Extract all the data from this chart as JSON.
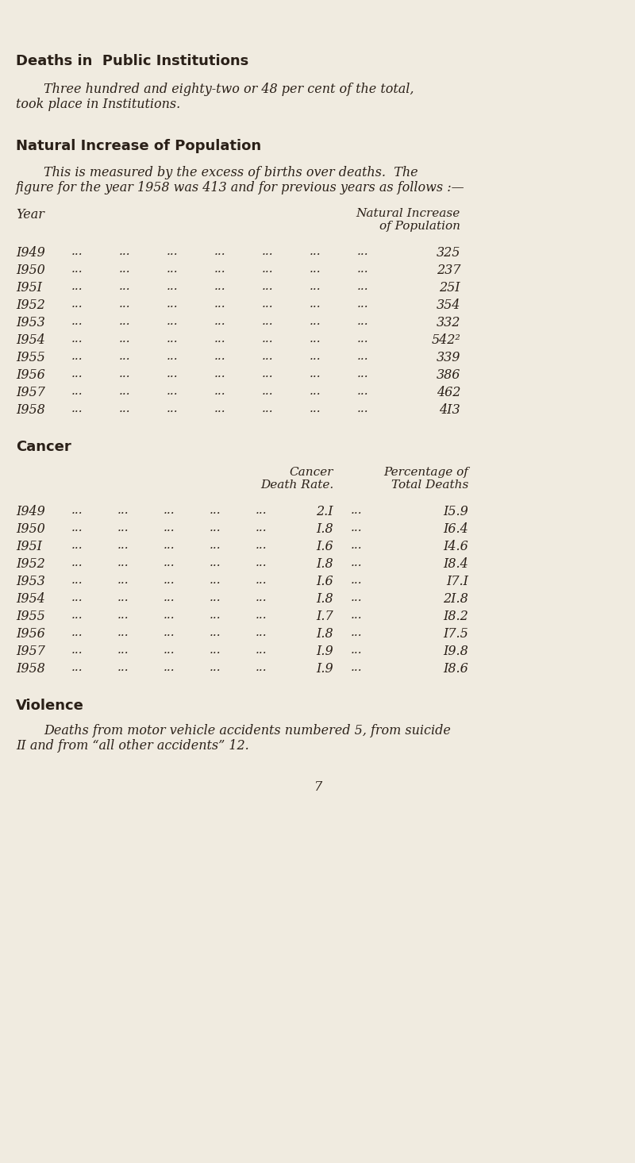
{
  "bg_color": "#f0ebe0",
  "text_color": "#2a2018",
  "section1_title": "Deaths in  Public Institutions",
  "section1_line1": "Three hundred and eighty-two or 48 per cent of the total,",
  "section1_line2": "took place in Institutions.",
  "section2_title": "Natural Increase of Population",
  "section2_line1": "This is measured by the excess of births over deaths.  The",
  "section2_line2": "figure for the year 1958 was 413 and for previous years as follows :—",
  "t1_col1_label": "Year",
  "t1_col2_label1": "Natural Increase",
  "t1_col2_label2": "of Population",
  "table1_rows": [
    [
      "I949",
      "325"
    ],
    [
      "I950",
      "237"
    ],
    [
      "I95I",
      "25I"
    ],
    [
      "I952",
      "354"
    ],
    [
      "I953",
      "332"
    ],
    [
      "I954",
      "542²"
    ],
    [
      "I955",
      "339"
    ],
    [
      "I956",
      "386"
    ],
    [
      "I957",
      "462"
    ],
    [
      "I958",
      "4I3"
    ]
  ],
  "section3_title": "Cancer",
  "t2_col1_label1": "Cancer",
  "t2_col1_label2": "Death Rate.",
  "t2_col2_label1": "Percentage of",
  "t2_col2_label2": "Total Deaths",
  "table2_rows": [
    [
      "I949",
      "2.I",
      "I5.9"
    ],
    [
      "I950",
      "I.8",
      "I6.4"
    ],
    [
      "I95I",
      "I.6",
      "I4.6"
    ],
    [
      "I952",
      "I.8",
      "I8.4"
    ],
    [
      "I953",
      "I.6",
      "I7.I"
    ],
    [
      "I954",
      "I.8",
      "2I.8"
    ],
    [
      "I955",
      "I.7",
      "I8.2"
    ],
    [
      "I956",
      "I.8",
      "I7.5"
    ],
    [
      "I957",
      "I.9",
      "I9.8"
    ],
    [
      "I958",
      "I.9",
      "I8.6"
    ]
  ],
  "section4_title": "Violence",
  "section4_line1": "Deaths from motor vehicle accidents numbered 5, from suicide",
  "section4_line2": "II and from “all other accidents” 12.",
  "page_num": "7"
}
